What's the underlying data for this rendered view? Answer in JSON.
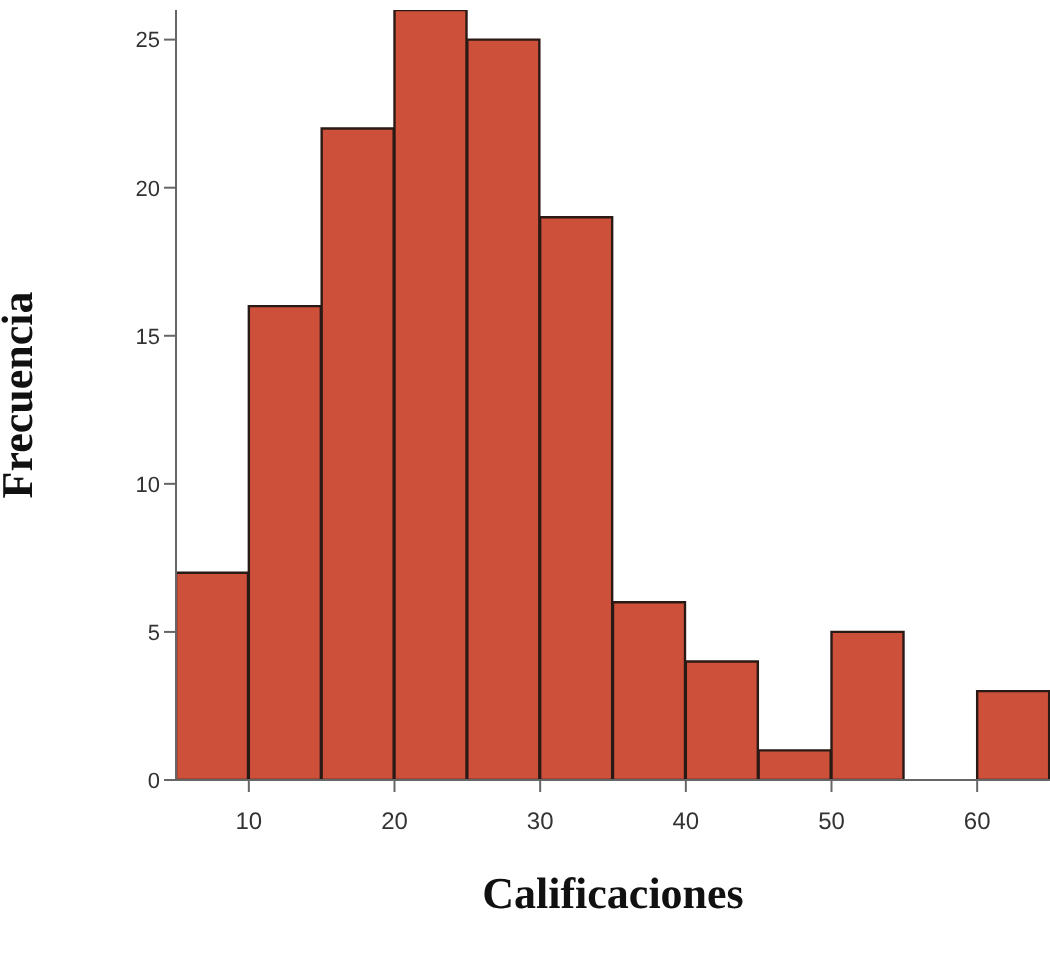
{
  "chart_data": {
    "type": "histogram",
    "xlabel": "Calificaciones",
    "ylabel": "Frecuencia",
    "bins": [
      5,
      10,
      15,
      20,
      25,
      30,
      35,
      40,
      45,
      50,
      55,
      60,
      65
    ],
    "values": [
      7,
      16,
      22,
      26,
      25,
      19,
      6,
      4,
      1,
      5,
      0,
      3
    ],
    "color": "#cd503a",
    "xlim": [
      5,
      65
    ],
    "xticks": [
      10,
      20,
      30,
      40,
      50,
      60
    ],
    "ylim": [
      0,
      26
    ],
    "yticks": [
      0,
      5,
      10,
      15,
      20,
      25
    ],
    "grid": false,
    "legend": false
  }
}
